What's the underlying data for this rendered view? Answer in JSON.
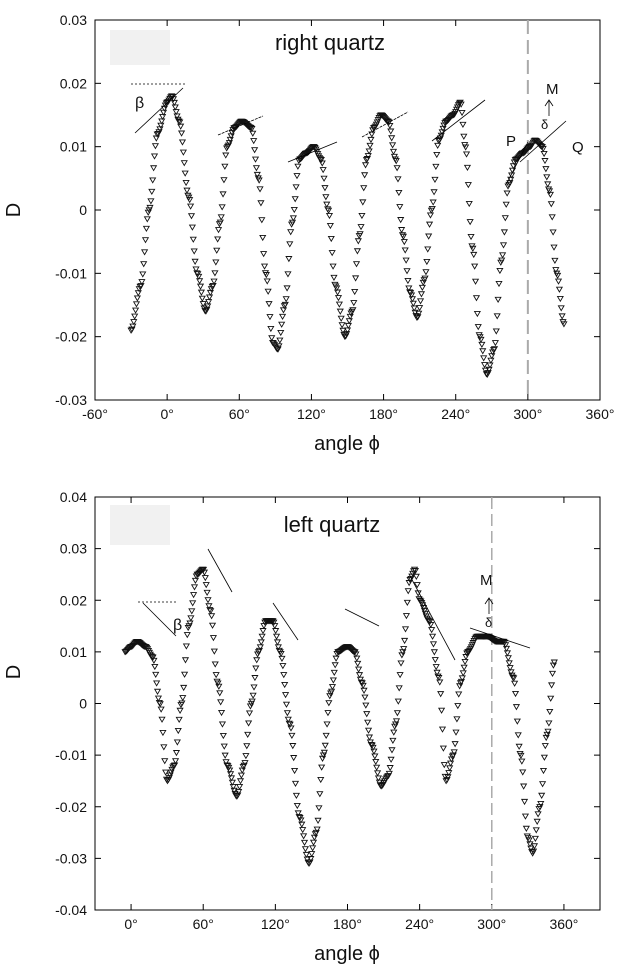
{
  "chart_data": [
    {
      "type": "scatter",
      "title": "right quartz",
      "xlabel": "angle ϕ",
      "ylabel": "D",
      "xlim": [
        -60,
        360
      ],
      "ylim": [
        -0.03,
        0.03
      ],
      "x_ticks": [
        -60,
        0,
        60,
        120,
        180,
        240,
        300,
        360
      ],
      "x_tick_labels": [
        "-60°",
        "0°",
        "60°",
        "120°",
        "180°",
        "240°",
        "300°",
        "360°"
      ],
      "y_ticks": [
        -0.03,
        -0.02,
        -0.01,
        0,
        0.01,
        0.02,
        0.03
      ],
      "y_tick_labels": [
        "-0.03",
        "-0.02",
        "-0.01",
        "0",
        "0.01",
        "0.02",
        "0.03"
      ],
      "grid": false,
      "marker": "triangle-down",
      "dashed_vline_x": 300,
      "annotations": [
        "β",
        "M",
        "δ",
        "P",
        "Q"
      ],
      "curve_knots": [
        [
          -30,
          -0.019
        ],
        [
          -22,
          -0.012
        ],
        [
          -15,
          0.0
        ],
        [
          -8,
          0.012
        ],
        [
          0,
          0.017
        ],
        [
          4,
          0.018
        ],
        [
          10,
          0.014
        ],
        [
          18,
          0.002
        ],
        [
          25,
          -0.01
        ],
        [
          32,
          -0.016
        ],
        [
          38,
          -0.012
        ],
        [
          44,
          -0.002
        ],
        [
          50,
          0.01
        ],
        [
          56,
          0.013
        ],
        [
          62,
          0.014
        ],
        [
          70,
          0.013
        ],
        [
          76,
          0.005
        ],
        [
          82,
          -0.01
        ],
        [
          88,
          -0.021
        ],
        [
          92,
          -0.022
        ],
        [
          98,
          -0.015
        ],
        [
          104,
          -0.002
        ],
        [
          110,
          0.008
        ],
        [
          116,
          0.009
        ],
        [
          122,
          0.01
        ],
        [
          128,
          0.008
        ],
        [
          134,
          0.0
        ],
        [
          140,
          -0.012
        ],
        [
          148,
          -0.02
        ],
        [
          154,
          -0.016
        ],
        [
          160,
          -0.004
        ],
        [
          166,
          0.008
        ],
        [
          172,
          0.013
        ],
        [
          178,
          0.015
        ],
        [
          184,
          0.014
        ],
        [
          190,
          0.008
        ],
        [
          196,
          -0.004
        ],
        [
          202,
          -0.013
        ],
        [
          208,
          -0.017
        ],
        [
          214,
          -0.011
        ],
        [
          220,
          0.0
        ],
        [
          226,
          0.011
        ],
        [
          232,
          0.014
        ],
        [
          238,
          0.015
        ],
        [
          244,
          0.017
        ],
        [
          248,
          0.01
        ],
        [
          254,
          -0.006
        ],
        [
          260,
          -0.02
        ],
        [
          266,
          -0.026
        ],
        [
          272,
          -0.022
        ],
        [
          278,
          -0.008
        ],
        [
          284,
          0.004
        ],
        [
          290,
          0.008
        ],
        [
          296,
          0.009
        ],
        [
          302,
          0.01
        ],
        [
          306,
          0.011
        ],
        [
          312,
          0.01
        ],
        [
          318,
          0.003
        ],
        [
          324,
          -0.01
        ],
        [
          330,
          -0.018
        ]
      ]
    },
    {
      "type": "scatter",
      "title": "left quartz",
      "xlabel": "angle ϕ",
      "ylabel": "D",
      "xlim": [
        -30,
        390
      ],
      "ylim": [
        -0.04,
        0.04
      ],
      "x_ticks": [
        0,
        60,
        120,
        180,
        240,
        300,
        360
      ],
      "x_tick_labels": [
        "0°",
        "60°",
        "120°",
        "180°",
        "240°",
        "300°",
        "360°"
      ],
      "y_ticks": [
        -0.04,
        -0.03,
        -0.02,
        -0.01,
        0,
        0.01,
        0.02,
        0.03,
        0.04
      ],
      "y_tick_labels": [
        "-0.04",
        "-0.03",
        "-0.02",
        "-0.01",
        "0",
        "0.01",
        "0.02",
        "0.03",
        "0.04"
      ],
      "grid": false,
      "marker": "triangle-down",
      "dashed_vline_x": 300,
      "annotations": [
        "β",
        "M",
        "δ"
      ],
      "curve_knots": [
        [
          -5,
          0.01
        ],
        [
          0,
          0.011
        ],
        [
          5,
          0.012
        ],
        [
          12,
          0.011
        ],
        [
          18,
          0.009
        ],
        [
          24,
          0.0
        ],
        [
          30,
          -0.015
        ],
        [
          36,
          -0.012
        ],
        [
          42,
          0.0
        ],
        [
          48,
          0.015
        ],
        [
          55,
          0.025
        ],
        [
          60,
          0.026
        ],
        [
          66,
          0.018
        ],
        [
          72,
          0.004
        ],
        [
          80,
          -0.012
        ],
        [
          88,
          -0.018
        ],
        [
          94,
          -0.012
        ],
        [
          100,
          0.0
        ],
        [
          106,
          0.01
        ],
        [
          112,
          0.016
        ],
        [
          118,
          0.016
        ],
        [
          124,
          0.01
        ],
        [
          132,
          -0.004
        ],
        [
          140,
          -0.022
        ],
        [
          148,
          -0.031
        ],
        [
          154,
          -0.025
        ],
        [
          160,
          -0.01
        ],
        [
          166,
          0.002
        ],
        [
          172,
          0.01
        ],
        [
          180,
          0.011
        ],
        [
          186,
          0.01
        ],
        [
          192,
          0.004
        ],
        [
          200,
          -0.008
        ],
        [
          208,
          -0.016
        ],
        [
          214,
          -0.014
        ],
        [
          220,
          -0.004
        ],
        [
          226,
          0.01
        ],
        [
          232,
          0.024
        ],
        [
          236,
          0.026
        ],
        [
          240,
          0.02
        ],
        [
          248,
          0.016
        ],
        [
          256,
          0.005
        ],
        [
          262,
          -0.015
        ],
        [
          268,
          -0.01
        ],
        [
          274,
          0.004
        ],
        [
          280,
          0.01
        ],
        [
          288,
          0.013
        ],
        [
          296,
          0.013
        ],
        [
          304,
          0.012
        ],
        [
          310,
          0.012
        ],
        [
          318,
          0.005
        ],
        [
          324,
          -0.01
        ],
        [
          330,
          -0.026
        ],
        [
          334,
          -0.029
        ],
        [
          340,
          -0.02
        ],
        [
          346,
          -0.006
        ],
        [
          352,
          0.008
        ]
      ]
    }
  ]
}
